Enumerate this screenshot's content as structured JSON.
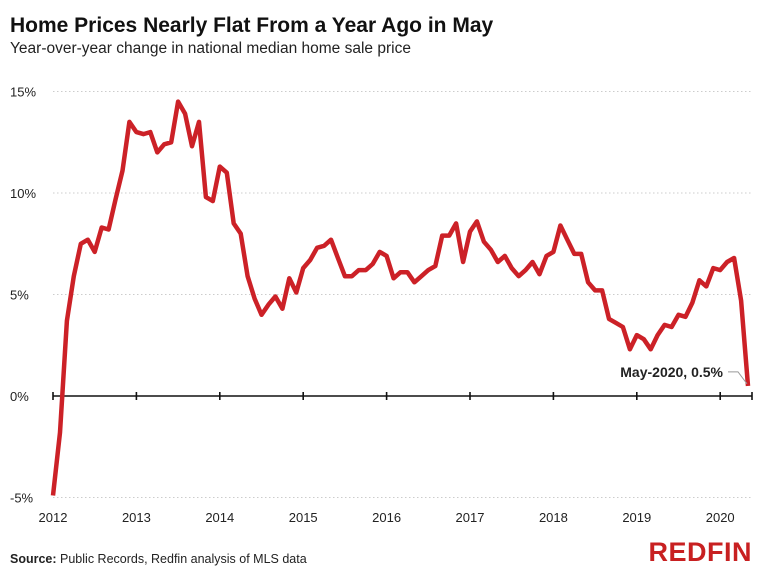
{
  "chart_data": {
    "type": "line",
    "title": "Home Prices Nearly Flat From a Year Ago in May",
    "subtitle": "Year-over-year change in national median home sale price",
    "xlabel": "",
    "ylabel": "",
    "x_start": "2012-01",
    "x_end": "2020-05",
    "frequency": "monthly",
    "x_ticks": [
      "2012",
      "2013",
      "2014",
      "2015",
      "2016",
      "2017",
      "2018",
      "2019",
      "2020"
    ],
    "y_ticks": [
      {
        "value": 15,
        "label": "15%"
      },
      {
        "value": 10,
        "label": "10%"
      },
      {
        "value": 5,
        "label": "5%"
      },
      {
        "value": 0,
        "label": "0%"
      },
      {
        "value": -5,
        "label": "-5%"
      }
    ],
    "ylim": [
      -5,
      15
    ],
    "grid": "horizontal dotted",
    "series": [
      {
        "color": "#cc2127",
        "values": [
          -4.9,
          -1.8,
          3.7,
          5.9,
          7.5,
          7.7,
          7.1,
          8.3,
          8.2,
          9.7,
          11.1,
          13.5,
          13.0,
          12.9,
          13.0,
          12.0,
          12.4,
          12.5,
          14.5,
          13.9,
          12.3,
          13.5,
          9.8,
          9.6,
          11.3,
          11.0,
          8.5,
          8.0,
          5.9,
          4.8,
          4.0,
          4.5,
          4.9,
          4.3,
          5.8,
          5.1,
          6.3,
          6.7,
          7.3,
          7.4,
          7.7,
          6.8,
          5.9,
          5.9,
          6.2,
          6.2,
          6.5,
          7.1,
          6.9,
          5.8,
          6.1,
          6.1,
          5.6,
          5.9,
          6.2,
          6.4,
          7.9,
          7.9,
          8.5,
          6.6,
          8.1,
          8.6,
          7.6,
          7.2,
          6.6,
          6.9,
          6.3,
          5.9,
          6.2,
          6.6,
          6.0,
          6.9,
          7.1,
          8.4,
          7.7,
          7.0,
          7.0,
          5.6,
          5.2,
          5.2,
          3.8,
          3.6,
          3.4,
          2.3,
          3.0,
          2.8,
          2.3,
          3.0,
          3.5,
          3.4,
          4.0,
          3.9,
          4.6,
          5.7,
          5.4,
          6.3,
          6.2,
          6.6,
          6.8,
          4.7,
          0.5
        ]
      }
    ],
    "annotation": "May-2020, 0.5%"
  },
  "footer": {
    "source_label": "Source:",
    "source_text": " Public Records, Redfin analysis of MLS data"
  },
  "logo": "REDFIN"
}
